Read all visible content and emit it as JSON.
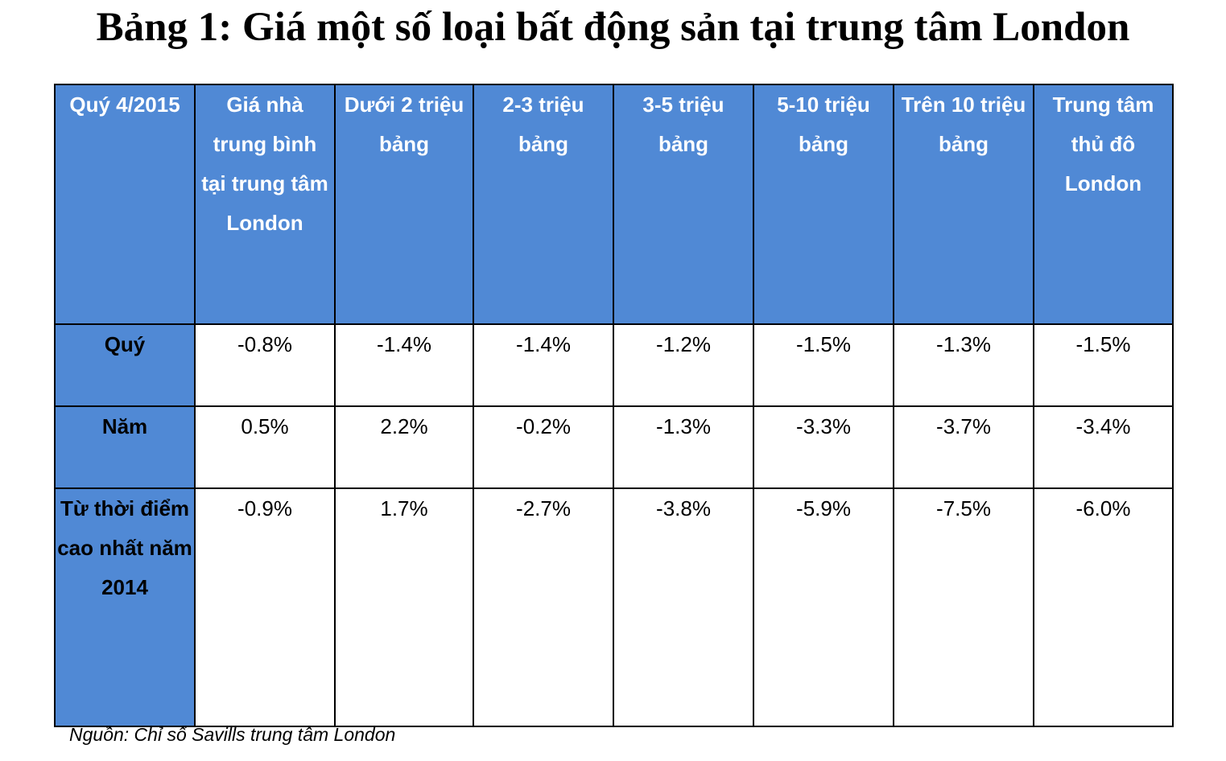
{
  "title": "Bảng 1: Giá một số loại bất động sản tại trung tâm London",
  "source": "Nguồn: Chỉ số Savills trung tâm London",
  "colors": {
    "header_fill": "#5089d5",
    "border": "#000000",
    "header_text": "#ffffff"
  },
  "chart_data": {
    "type": "table",
    "title": "Bảng 1: Giá một số loại bất động sản tại trung tâm London",
    "columns": [
      "Quý 4/2015",
      "Giá nhà trung bình tại trung tâm London",
      "Dưới 2 triệu bảng",
      "2-3 triệu bảng",
      "3-5 triệu bảng",
      "5-10 triệu bảng",
      "Trên 10 triệu bảng",
      "Trung tâm thủ đô London"
    ],
    "rows": [
      {
        "label": "Quý",
        "values": [
          "-0.8%",
          "-1.4%",
          "-1.4%",
          "-1.2%",
          "-1.5%",
          "-1.3%",
          "-1.5%"
        ]
      },
      {
        "label": "Năm",
        "values": [
          "0.5%",
          "2.2%",
          "-0.2%",
          "-1.3%",
          "-3.3%",
          "-3.7%",
          "-3.4%"
        ]
      },
      {
        "label": "Từ thời điểm cao nhất năm 2014",
        "values": [
          "-0.9%",
          "1.7%",
          "-2.7%",
          "-3.8%",
          "-5.9%",
          "-7.5%",
          "-6.0%"
        ]
      }
    ],
    "source": "Nguồn: Chỉ số Savills trung tâm London"
  }
}
